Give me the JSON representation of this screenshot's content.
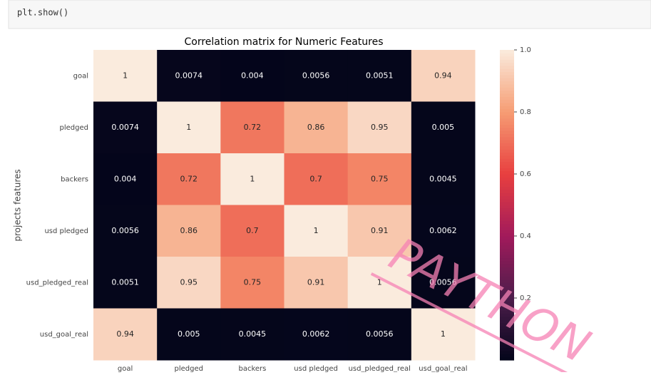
{
  "code_cell": {
    "code": "plt.show()"
  },
  "chart_data": {
    "type": "heatmap",
    "title": "Correlation matrix for Numeric Features",
    "y_label": "projects features",
    "categories": [
      "goal",
      "pledged",
      "backers",
      "usd pledged",
      "usd_pledged_real",
      "usd_goal_real"
    ],
    "values": [
      [
        1,
        0.0074,
        0.004,
        0.0056,
        0.0051,
        0.94
      ],
      [
        0.0074,
        1,
        0.72,
        0.86,
        0.95,
        0.005
      ],
      [
        0.004,
        0.72,
        1,
        0.7,
        0.75,
        0.0045
      ],
      [
        0.0056,
        0.86,
        0.7,
        1,
        0.91,
        0.0062
      ],
      [
        0.0051,
        0.95,
        0.75,
        0.91,
        1,
        0.0056
      ],
      [
        0.94,
        0.005,
        0.0045,
        0.0062,
        0.0056,
        1
      ]
    ],
    "colormap": [
      "#03051a",
      "#4c1d4b",
      "#a11a5b",
      "#e83f3f",
      "#f69c73",
      "#faebdd"
    ],
    "clim": [
      0,
      1
    ],
    "cticks": [
      0.2,
      0.4,
      0.6,
      0.8,
      {
        "value": 1,
        "label": "1.0"
      }
    ]
  },
  "watermark": "PAYTHON"
}
